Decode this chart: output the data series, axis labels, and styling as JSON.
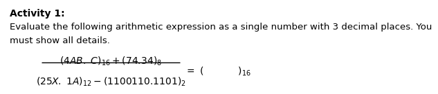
{
  "title": "Activity 1:",
  "line1": "Evaluate the following arithmetic expression as a single number with 3 decimal places. You",
  "line2": "must show all details.",
  "numerator": "(4AB. C)$_{16}$ + (74.34)$_{8}$",
  "denominator": "(25Χ. 1Λ)$_{12}$ − (1100110.1101)$_{2}$",
  "result_prefix": "= (              )$_{16}$",
  "bg_color": "#ffffff",
  "text_color": "#000000",
  "title_fontsize": 10,
  "body_fontsize": 9.5,
  "math_fontsize": 10
}
